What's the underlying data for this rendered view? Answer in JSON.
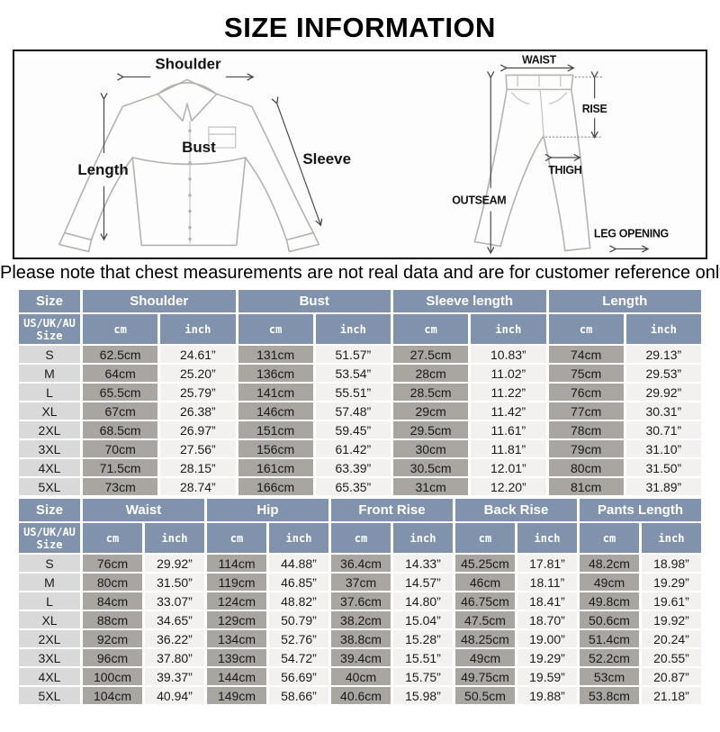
{
  "page": {
    "title": "SIZE INFORMATION",
    "note": "Please note that chest measurements are not real data and are for customer reference only."
  },
  "colors": {
    "header_bg": "#8092ac",
    "size_col_bg": "#d9d9d9",
    "cm_col_bg": "#a9a5a0",
    "inch_col_bg": "#f2f1ef",
    "sketch_line": "#b5b2ae",
    "border": "#0a0a0a"
  },
  "diagrams": {
    "shirt": {
      "labels": {
        "shoulder": "Shoulder",
        "length": "Length",
        "bust": "Bust",
        "sleeve": "Sleeve"
      }
    },
    "pants": {
      "labels": {
        "waist": "WAIST",
        "rise": "RISE",
        "outseam": "OUTSEAM",
        "thigh": "THIGH",
        "leg_opening": "LEG OPENING"
      }
    }
  },
  "size_tables": [
    {
      "name": "tops",
      "size_header": "Size",
      "row_header": "US/UK/AU\nSize",
      "units": [
        "cm",
        "inch"
      ],
      "groups": [
        "Shoulder",
        "Bust",
        "Sleeve length",
        "Length"
      ],
      "rows": [
        {
          "size": "S",
          "values": [
            "62.5cm",
            "24.61”",
            "131cm",
            "51.57”",
            "27.5cm",
            "10.83”",
            "74cm",
            "29.13”"
          ]
        },
        {
          "size": "M",
          "values": [
            "64cm",
            "25.20”",
            "136cm",
            "53.54”",
            "28cm",
            "11.02”",
            "75cm",
            "29.53”"
          ]
        },
        {
          "size": "L",
          "values": [
            "65.5cm",
            "25.79”",
            "141cm",
            "55.51”",
            "28.5cm",
            "11.22”",
            "76cm",
            "29.92”"
          ]
        },
        {
          "size": "XL",
          "values": [
            "67cm",
            "26.38”",
            "146cm",
            "57.48”",
            "29cm",
            "11.42”",
            "77cm",
            "30.31”"
          ]
        },
        {
          "size": "2XL",
          "values": [
            "68.5cm",
            "26.97”",
            "151cm",
            "59.45”",
            "29.5cm",
            "11.61”",
            "78cm",
            "30.71”"
          ]
        },
        {
          "size": "3XL",
          "values": [
            "70cm",
            "27.56”",
            "156cm",
            "61.42”",
            "30cm",
            "11.81”",
            "79cm",
            "31.10”"
          ]
        },
        {
          "size": "4XL",
          "values": [
            "71.5cm",
            "28.15”",
            "161cm",
            "63.39”",
            "30.5cm",
            "12.01”",
            "80cm",
            "31.50”"
          ]
        },
        {
          "size": "5XL",
          "values": [
            "73cm",
            "28.74”",
            "166cm",
            "65.35”",
            "31cm",
            "12.20”",
            "81cm",
            "31.89”"
          ]
        }
      ]
    },
    {
      "name": "pants",
      "size_header": "Size",
      "row_header": "US/UK/AU\nSize",
      "units": [
        "cm",
        "inch"
      ],
      "groups": [
        "Waist",
        "Hip",
        "Front Rise",
        "Back Rise",
        "Pants Length"
      ],
      "rows": [
        {
          "size": "S",
          "values": [
            "76cm",
            "29.92”",
            "114cm",
            "44.88”",
            "36.4cm",
            "14.33”",
            "45.25cm",
            "17.81”",
            "48.2cm",
            "18.98”"
          ]
        },
        {
          "size": "M",
          "values": [
            "80cm",
            "31.50”",
            "119cm",
            "46.85”",
            "37cm",
            "14.57”",
            "46cm",
            "18.11”",
            "49cm",
            "19.29”"
          ]
        },
        {
          "size": "L",
          "values": [
            "84cm",
            "33.07”",
            "124cm",
            "48.82”",
            "37.6cm",
            "14.80”",
            "46.75cm",
            "18.41”",
            "49.8cm",
            "19.61”"
          ]
        },
        {
          "size": "XL",
          "values": [
            "88cm",
            "34.65”",
            "129cm",
            "50.79”",
            "38.2cm",
            "15.04”",
            "47.5cm",
            "18.70”",
            "50.6cm",
            "19.92”"
          ]
        },
        {
          "size": "2XL",
          "values": [
            "92cm",
            "36.22”",
            "134cm",
            "52.76”",
            "38.8cm",
            "15.28”",
            "48.25cm",
            "19.00”",
            "51.4cm",
            "20.24”"
          ]
        },
        {
          "size": "3XL",
          "values": [
            "96cm",
            "37.80”",
            "139cm",
            "54.72”",
            "39.4cm",
            "15.51”",
            "49cm",
            "19.29”",
            "52.2cm",
            "20.55”"
          ]
        },
        {
          "size": "4XL",
          "values": [
            "100cm",
            "39.37”",
            "144cm",
            "56.69”",
            "40cm",
            "15.75”",
            "49.75cm",
            "19.59”",
            "53cm",
            "20.87”"
          ]
        },
        {
          "size": "5XL",
          "values": [
            "104cm",
            "40.94”",
            "149cm",
            "58.66”",
            "40.6cm",
            "15.98”",
            "50.5cm",
            "19.88”",
            "53.8cm",
            "21.18”"
          ]
        }
      ]
    }
  ]
}
